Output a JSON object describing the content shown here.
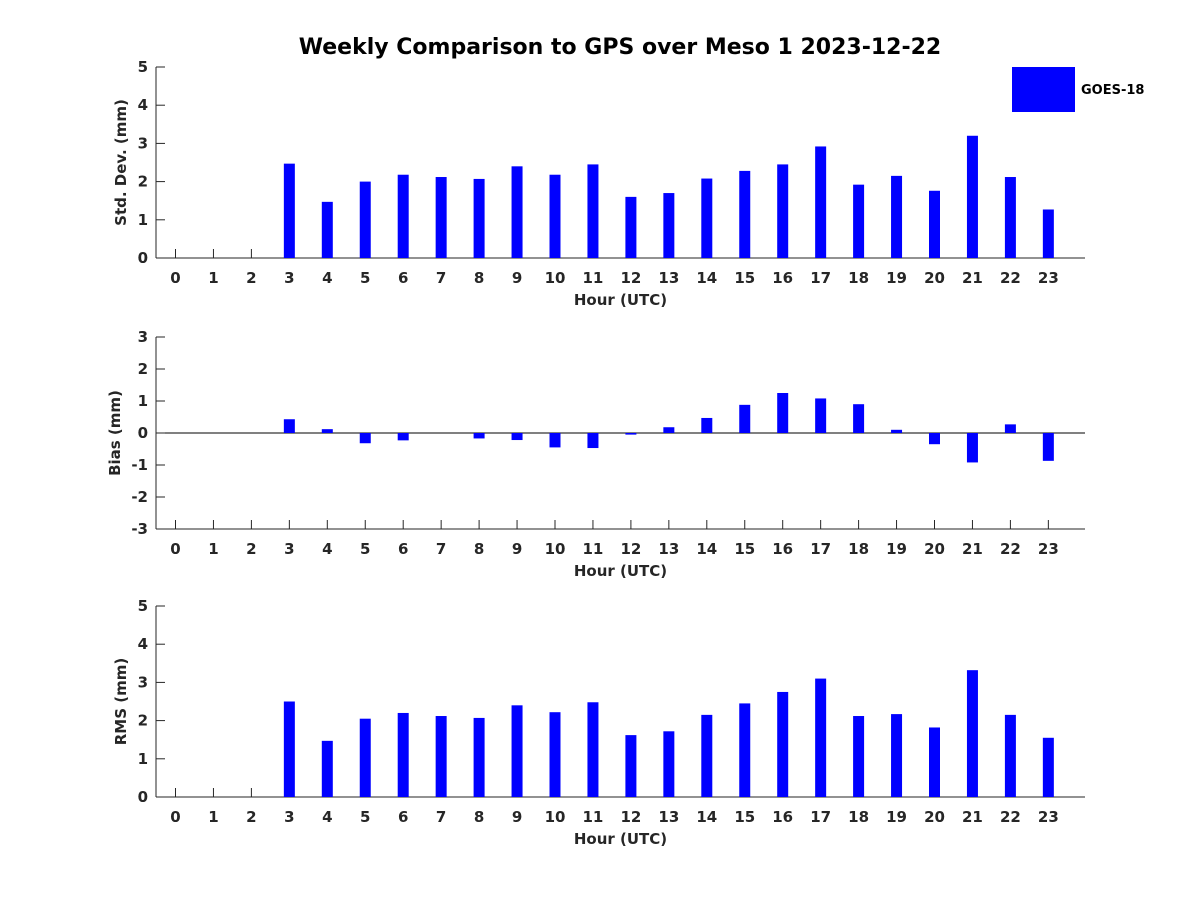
{
  "figure": {
    "title": "Weekly Comparison to GPS over Meso 1 2023-12-22"
  },
  "legend": {
    "label": "GOES-18",
    "color": "#0000ff"
  },
  "chart_data": [
    {
      "type": "bar",
      "title": "Weekly Comparison to GPS over Meso 1 2023-12-22",
      "xlabel": "Hour (UTC)",
      "ylabel": "Std. Dev. (mm)",
      "ylim": [
        0,
        5
      ],
      "yticks": [
        0,
        1,
        2,
        3,
        4,
        5
      ],
      "categories": [
        "0",
        "1",
        "2",
        "3",
        "4",
        "5",
        "6",
        "7",
        "8",
        "9",
        "10",
        "11",
        "12",
        "13",
        "14",
        "15",
        "16",
        "17",
        "18",
        "19",
        "20",
        "21",
        "22",
        "23"
      ],
      "series": [
        {
          "name": "GOES-18",
          "color": "#0000ff",
          "values": [
            null,
            null,
            null,
            2.47,
            1.47,
            2.0,
            2.18,
            2.12,
            2.07,
            2.4,
            2.18,
            2.45,
            1.6,
            1.7,
            2.08,
            2.28,
            2.45,
            2.92,
            1.92,
            2.15,
            1.76,
            3.2,
            2.12,
            1.27
          ]
        }
      ],
      "grid": false,
      "legend_position": "top-right"
    },
    {
      "type": "bar",
      "xlabel": "Hour (UTC)",
      "ylabel": "Bias (mm)",
      "ylim": [
        -3,
        3
      ],
      "yticks": [
        -3,
        -2,
        -1,
        0,
        1,
        2,
        3
      ],
      "categories": [
        "0",
        "1",
        "2",
        "3",
        "4",
        "5",
        "6",
        "7",
        "8",
        "9",
        "10",
        "11",
        "12",
        "13",
        "14",
        "15",
        "16",
        "17",
        "18",
        "19",
        "20",
        "21",
        "22",
        "23"
      ],
      "series": [
        {
          "name": "GOES-18",
          "color": "#0000ff",
          "values": [
            null,
            null,
            null,
            0.43,
            0.12,
            -0.32,
            -0.23,
            0.0,
            -0.17,
            -0.22,
            -0.45,
            -0.47,
            -0.05,
            0.18,
            0.47,
            0.88,
            1.25,
            1.08,
            0.9,
            0.1,
            -0.35,
            -0.92,
            0.27,
            -0.87
          ]
        }
      ],
      "grid": false
    },
    {
      "type": "bar",
      "xlabel": "Hour (UTC)",
      "ylabel": "RMS (mm)",
      "ylim": [
        0,
        5
      ],
      "yticks": [
        0,
        1,
        2,
        3,
        4,
        5
      ],
      "categories": [
        "0",
        "1",
        "2",
        "3",
        "4",
        "5",
        "6",
        "7",
        "8",
        "9",
        "10",
        "11",
        "12",
        "13",
        "14",
        "15",
        "16",
        "17",
        "18",
        "19",
        "20",
        "21",
        "22",
        "23"
      ],
      "series": [
        {
          "name": "GOES-18",
          "color": "#0000ff",
          "values": [
            null,
            null,
            null,
            2.5,
            1.47,
            2.05,
            2.2,
            2.12,
            2.07,
            2.4,
            2.22,
            2.48,
            1.62,
            1.72,
            2.15,
            2.45,
            2.75,
            3.1,
            2.12,
            2.17,
            1.82,
            3.32,
            2.15,
            1.55
          ]
        }
      ],
      "grid": false
    }
  ]
}
